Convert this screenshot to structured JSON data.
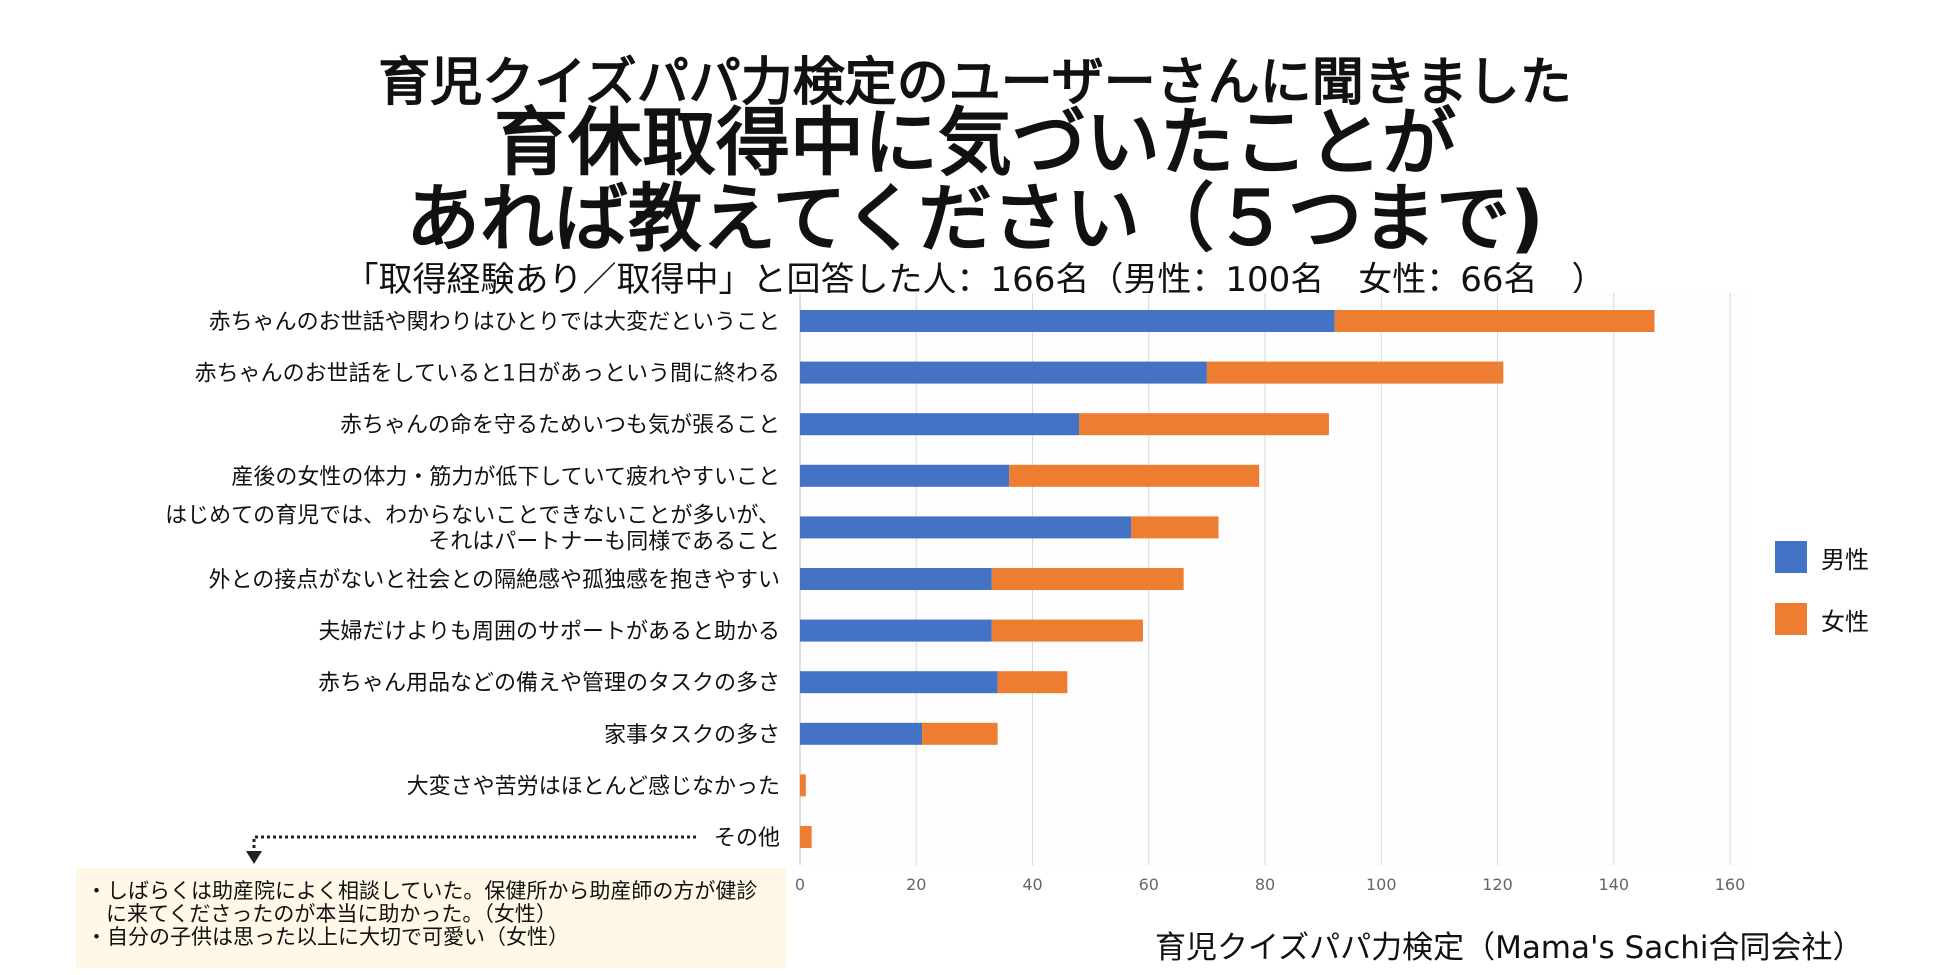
{
  "header": {
    "title_line1": "育児クイズパパ力検定のユーザーさんに聞きました",
    "title_line2": "育休取得中に気づいたことが",
    "title_line3": "あれば教えてください（５つまで)",
    "subtitle": "「取得経験あり／取得中」と回答した人：166名（男性：100名　女性：66名　）"
  },
  "chart_data": {
    "type": "bar",
    "orientation": "horizontal",
    "stacked": true,
    "categories": [
      "赤ちゃんのお世話や関わりはひとりでは大変だということ",
      "赤ちゃんのお世話をしていると1日があっという間に終わる",
      "赤ちゃんの命を守るためいつも気が張ること",
      "産後の女性の体力・筋力が低下していて疲れやすいこと",
      "はじめての育児では、わからないことできないことが多いが、それはパートナーも同様であること",
      "外との接点がないと社会との隔絶感や孤独感を抱きやすい",
      "夫婦だけよりも周囲のサポートがあると助かる",
      "赤ちゃん用品などの備えや管理のタスクの多さ",
      "家事タスクの多さ",
      "大変さや苦労はほとんど感じなかった",
      "その他"
    ],
    "category_label_lines": [
      [
        "赤ちゃんのお世話や関わりはひとりでは大変だということ"
      ],
      [
        "赤ちゃんのお世話をしていると1日があっという間に終わる"
      ],
      [
        "赤ちゃんの命を守るためいつも気が張ること"
      ],
      [
        "産後の女性の体力・筋力が低下していて疲れやすいこと"
      ],
      [
        "はじめての育児では、わからないことできないことが多いが、",
        "それはパートナーも同様であること"
      ],
      [
        "外との接点がないと社会との隔絶感や孤独感を抱きやすい"
      ],
      [
        "夫婦だけよりも周囲のサポートがあると助かる"
      ],
      [
        "赤ちゃん用品などの備えや管理のタスクの多さ"
      ],
      [
        "家事タスクの多さ"
      ],
      [
        "大変さや苦労はほとんど感じなかった"
      ],
      [
        "その他"
      ]
    ],
    "series": [
      {
        "name": "男性",
        "color": "#4472c4",
        "values": [
          92,
          70,
          48,
          36,
          57,
          33,
          33,
          34,
          21,
          0,
          0
        ]
      },
      {
        "name": "女性",
        "color": "#ed7d31",
        "values": [
          55,
          51,
          43,
          43,
          15,
          33,
          26,
          12,
          13,
          1,
          2
        ]
      }
    ],
    "xlim": [
      0,
      160
    ],
    "xticks": [
      0,
      20,
      40,
      60,
      80,
      100,
      120,
      140,
      160
    ],
    "grid": true,
    "legend_position": "right",
    "title": "",
    "xlabel": "",
    "ylabel": ""
  },
  "note": {
    "lines": [
      "しばらくは助産院によく相談していた。保健所から助産師の方が健診に来てくださったのが本当に助かった。（女性）",
      "自分の子供は思った以上に大切で可愛い（女性）"
    ]
  },
  "footer": {
    "credit": "育児クイズパパ力検定（Mama's Sachi合同会社）"
  },
  "colors": {
    "male": "#4472c4",
    "female": "#ed7d31",
    "note_bg": "#fff8e6",
    "grid": "#d9d9d9"
  }
}
